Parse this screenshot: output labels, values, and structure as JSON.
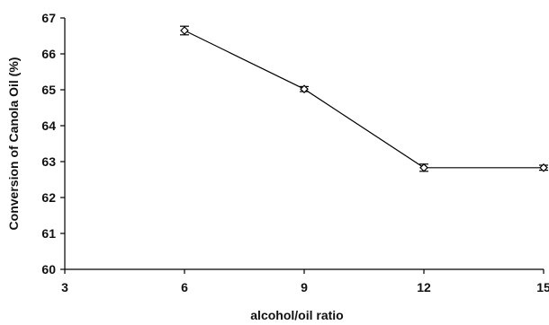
{
  "chart_data": {
    "type": "line",
    "title": "",
    "xlabel": "alcohol/oil ratio",
    "ylabel": "Conversion of Canola Oil (%)",
    "xlim": [
      3,
      15
    ],
    "ylim": [
      60,
      67
    ],
    "xticks": [
      3,
      6,
      9,
      12,
      15
    ],
    "yticks": [
      60,
      61,
      62,
      63,
      64,
      65,
      66,
      67
    ],
    "grid": false,
    "legend": "none",
    "series": [
      {
        "x": [
          6,
          9,
          12,
          15
        ],
        "y": [
          66.65,
          65.02,
          62.83,
          62.83
        ],
        "error": [
          0.12,
          0.07,
          0.1,
          0.07
        ],
        "marker": "diamond",
        "color": "#000000"
      }
    ]
  }
}
